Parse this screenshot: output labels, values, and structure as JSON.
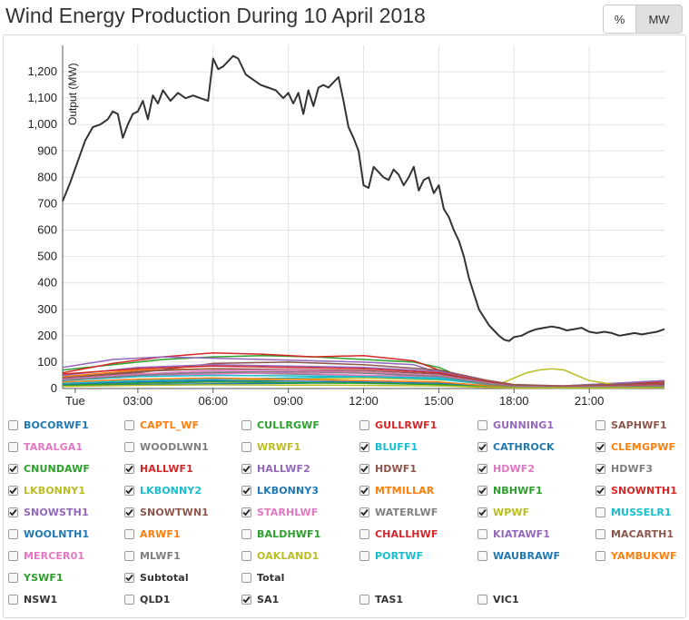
{
  "header": {
    "title": "Wind Energy Production During 10 April 2018"
  },
  "units_toggle": {
    "percent_label": "%",
    "mw_label": "MW",
    "selected": "MW"
  },
  "chart_data": {
    "type": "line",
    "ylabel": "Output (MW)",
    "ylim": [
      0,
      1300
    ],
    "yticks": [
      0,
      100,
      200,
      300,
      400,
      500,
      600,
      700,
      800,
      900,
      1000,
      1100,
      1200
    ],
    "ytick_labels": [
      "0",
      "100",
      "200",
      "300",
      "400",
      "500",
      "600",
      "700",
      "800",
      "900",
      "1,000",
      "1,100",
      "1,200"
    ],
    "xlim_hours": [
      0,
      24
    ],
    "xticks_hours": [
      0.5,
      3,
      6,
      9,
      12,
      15,
      18,
      21
    ],
    "xtick_labels": [
      "Tue",
      "03:00",
      "06:00",
      "09:00",
      "12:00",
      "15:00",
      "18:00",
      "21:00"
    ],
    "grid": true,
    "series": [
      {
        "name": "Subtotal",
        "color": "#333333",
        "x": [
          0,
          0.3,
          0.6,
          0.9,
          1.2,
          1.5,
          1.8,
          2.0,
          2.2,
          2.4,
          2.6,
          2.8,
          3.0,
          3.2,
          3.4,
          3.6,
          3.8,
          4.0,
          4.3,
          4.6,
          4.9,
          5.2,
          5.5,
          5.8,
          6.0,
          6.2,
          6.4,
          6.6,
          6.8,
          7.0,
          7.3,
          7.6,
          7.9,
          8.2,
          8.5,
          8.8,
          9.0,
          9.2,
          9.4,
          9.6,
          9.8,
          10.0,
          10.2,
          10.4,
          10.6,
          10.8,
          11.0,
          11.2,
          11.4,
          11.6,
          11.8,
          12.0,
          12.2,
          12.4,
          12.6,
          12.8,
          13.0,
          13.2,
          13.4,
          13.6,
          13.8,
          14.0,
          14.2,
          14.4,
          14.6,
          14.8,
          15.0,
          15.2,
          15.4,
          15.6,
          15.8,
          16.0,
          16.2,
          16.4,
          16.6,
          16.8,
          17.0,
          17.2,
          17.4,
          17.6,
          17.8,
          18.0,
          18.3,
          18.6,
          18.9,
          19.2,
          19.5,
          19.8,
          20.1,
          20.4,
          20.7,
          21.0,
          21.3,
          21.6,
          21.9,
          22.2,
          22.5,
          22.8,
          23.1,
          23.4,
          23.7,
          24.0
        ],
        "y": [
          710,
          780,
          860,
          940,
          990,
          1000,
          1020,
          1050,
          1040,
          950,
          1000,
          1040,
          1050,
          1090,
          1020,
          1110,
          1080,
          1130,
          1090,
          1120,
          1100,
          1110,
          1100,
          1090,
          1250,
          1210,
          1220,
          1240,
          1260,
          1250,
          1190,
          1170,
          1150,
          1140,
          1130,
          1100,
          1120,
          1080,
          1120,
          1040,
          1130,
          1070,
          1140,
          1150,
          1140,
          1160,
          1180,
          1090,
          990,
          950,
          900,
          770,
          760,
          840,
          820,
          800,
          790,
          830,
          810,
          770,
          800,
          840,
          750,
          790,
          800,
          740,
          770,
          680,
          650,
          600,
          560,
          500,
          420,
          360,
          300,
          270,
          240,
          220,
          200,
          185,
          180,
          195,
          200,
          215,
          225,
          230,
          235,
          230,
          220,
          225,
          230,
          215,
          210,
          215,
          210,
          200,
          205,
          210,
          205,
          210,
          215,
          225
        ]
      },
      {
        "name": "NBHWF1",
        "color": "#2ca02c",
        "x": [
          0,
          2,
          4,
          6,
          8,
          10,
          12,
          14,
          15,
          16,
          17,
          18,
          19,
          20,
          21,
          22,
          23,
          24
        ],
        "y": [
          70,
          90,
          110,
          120,
          125,
          120,
          110,
          100,
          80,
          40,
          20,
          10,
          10,
          10,
          15,
          20,
          25,
          30
        ]
      },
      {
        "name": "SNOWNTH1",
        "color": "#d62728",
        "x": [
          0,
          2,
          4,
          6,
          8,
          10,
          12,
          14,
          15,
          16,
          17,
          18,
          19,
          20,
          21,
          22,
          23,
          24
        ],
        "y": [
          60,
          95,
          120,
          135,
          130,
          120,
          125,
          105,
          70,
          40,
          20,
          10,
          5,
          5,
          10,
          15,
          20,
          25
        ]
      },
      {
        "name": "HALLWF2",
        "color": "#9467bd",
        "x": [
          0,
          2,
          4,
          6,
          8,
          10,
          12,
          14,
          15,
          16,
          17,
          18,
          19,
          20,
          21,
          22,
          23,
          24
        ],
        "y": [
          80,
          110,
          120,
          115,
          110,
          105,
          100,
          90,
          60,
          30,
          15,
          10,
          10,
          10,
          15,
          20,
          25,
          30
        ]
      },
      {
        "name": "WPWF",
        "color": "#bcbd22",
        "x": [
          0,
          6,
          12,
          16,
          17,
          17.5,
          18,
          18.5,
          19,
          19.5,
          20,
          20.5,
          21,
          22,
          23,
          24
        ],
        "y": [
          20,
          30,
          40,
          30,
          10,
          20,
          40,
          60,
          70,
          75,
          70,
          50,
          30,
          15,
          10,
          10
        ]
      },
      {
        "name": "CLEMGPWF",
        "color": "#ff7f0e",
        "x": [
          0,
          3,
          6,
          9,
          12,
          15,
          17,
          18,
          20,
          22,
          24
        ],
        "y": [
          45,
          70,
          75,
          70,
          60,
          50,
          20,
          10,
          5,
          10,
          15
        ]
      },
      {
        "name": "HDWF1",
        "color": "#8c564b",
        "x": [
          0,
          3,
          6,
          9,
          12,
          15,
          17,
          18,
          20,
          22,
          24
        ],
        "y": [
          40,
          60,
          95,
          100,
          90,
          70,
          30,
          15,
          10,
          15,
          20
        ]
      },
      {
        "name": "LKBONNY2",
        "color": "#17becf",
        "x": [
          0,
          3,
          6,
          9,
          12,
          15,
          17,
          18,
          20,
          22,
          24
        ],
        "y": [
          20,
          30,
          35,
          40,
          45,
          35,
          15,
          5,
          5,
          10,
          10
        ]
      },
      {
        "name": "SNOWSTH1",
        "color": "#9467bd",
        "x": [
          0,
          3,
          6,
          9,
          12,
          15,
          17,
          18,
          20,
          22,
          24
        ],
        "y": [
          50,
          80,
          90,
          85,
          80,
          65,
          25,
          10,
          5,
          10,
          15
        ]
      },
      {
        "name": "WATERLWF",
        "color": "#7f7f7f",
        "x": [
          0,
          3,
          6,
          9,
          12,
          15,
          17,
          18,
          20,
          22,
          24
        ],
        "y": [
          35,
          55,
          60,
          55,
          50,
          40,
          15,
          5,
          5,
          10,
          12
        ]
      },
      {
        "name": "CATHROCK",
        "color": "#1f77b4",
        "x": [
          0,
          3,
          6,
          9,
          12,
          15,
          17,
          18,
          20,
          22,
          24
        ],
        "y": [
          15,
          25,
          30,
          28,
          25,
          20,
          10,
          5,
          5,
          5,
          8
        ]
      },
      {
        "name": "STARHLWF",
        "color": "#e377c2",
        "x": [
          0,
          3,
          6,
          9,
          12,
          15,
          17,
          18,
          20,
          22,
          24
        ],
        "y": [
          30,
          50,
          55,
          60,
          50,
          45,
          20,
          10,
          8,
          10,
          12
        ]
      },
      {
        "name": "MTMILLAR",
        "color": "#ff7f0e",
        "x": [
          0,
          3,
          6,
          9,
          12,
          15,
          17,
          18,
          20,
          22,
          24
        ],
        "y": [
          25,
          35,
          40,
          35,
          30,
          25,
          10,
          5,
          3,
          5,
          6
        ]
      },
      {
        "name": "HALLWF1",
        "color": "#d62728",
        "x": [
          0,
          3,
          6,
          9,
          12,
          15,
          17,
          18,
          20,
          22,
          24
        ],
        "y": [
          55,
          75,
          85,
          80,
          75,
          60,
          25,
          10,
          8,
          10,
          14
        ]
      },
      {
        "name": "BLUFF1",
        "color": "#17becf",
        "x": [
          0,
          3,
          6,
          9,
          12,
          15,
          17,
          18,
          20,
          22,
          24
        ],
        "y": [
          30,
          45,
          50,
          48,
          45,
          40,
          18,
          8,
          6,
          8,
          10
        ]
      },
      {
        "name": "LKBONNY3",
        "color": "#1f77b4",
        "x": [
          0,
          3,
          6,
          9,
          12,
          15,
          17,
          18,
          20,
          22,
          24
        ],
        "y": [
          10,
          15,
          18,
          20,
          22,
          15,
          6,
          3,
          2,
          3,
          5
        ]
      },
      {
        "name": "SNOWTWN1",
        "color": "#8c564b",
        "x": [
          0,
          3,
          6,
          9,
          12,
          15,
          17,
          18,
          20,
          22,
          24
        ],
        "y": [
          40,
          65,
          75,
          72,
          68,
          55,
          22,
          10,
          6,
          8,
          12
        ]
      },
      {
        "name": "CNUNDAWF",
        "color": "#2ca02c",
        "x": [
          0,
          3,
          6,
          9,
          12,
          15,
          17,
          18,
          20,
          22,
          24
        ],
        "y": [
          12,
          20,
          25,
          22,
          20,
          15,
          6,
          3,
          2,
          3,
          4
        ]
      },
      {
        "name": "HDWF2",
        "color": "#e377c2",
        "x": [
          0,
          3,
          6,
          9,
          12,
          15,
          17,
          18,
          20,
          22,
          24
        ],
        "y": [
          35,
          55,
          68,
          70,
          62,
          50,
          20,
          8,
          5,
          8,
          10
        ]
      },
      {
        "name": "HDWF3",
        "color": "#7f7f7f",
        "x": [
          0,
          3,
          6,
          9,
          12,
          15,
          17,
          18,
          20,
          22,
          24
        ],
        "y": [
          32,
          50,
          62,
          64,
          58,
          46,
          18,
          7,
          5,
          7,
          9
        ]
      },
      {
        "name": "LKBONNY1",
        "color": "#bcbd22",
        "x": [
          0,
          3,
          6,
          9,
          12,
          15,
          17,
          18,
          20,
          22,
          24
        ],
        "y": [
          8,
          12,
          14,
          13,
          12,
          10,
          4,
          2,
          2,
          2,
          3
        ]
      }
    ]
  },
  "legend": {
    "items": [
      {
        "label": "BOCORWF1",
        "color": "#1f77b4",
        "checked": false
      },
      {
        "label": "CAPTL_WF",
        "color": "#ff7f0e",
        "checked": false
      },
      {
        "label": "CULLRGWF",
        "color": "#2ca02c",
        "checked": false
      },
      {
        "label": "GULLRWF1",
        "color": "#d62728",
        "checked": false
      },
      {
        "label": "GUNNING1",
        "color": "#9467bd",
        "checked": false
      },
      {
        "label": "SAPHWF1",
        "color": "#8c564b",
        "checked": false
      },
      {
        "label": "TARALGA1",
        "color": "#e377c2",
        "checked": false
      },
      {
        "label": "WOODLWN1",
        "color": "#7f7f7f",
        "checked": false
      },
      {
        "label": "WRWF1",
        "color": "#bcbd22",
        "checked": false
      },
      {
        "label": "BLUFF1",
        "color": "#17becf",
        "checked": true
      },
      {
        "label": "CATHROCK",
        "color": "#1f77b4",
        "checked": true
      },
      {
        "label": "CLEMGPWF",
        "color": "#ff7f0e",
        "checked": true
      },
      {
        "label": "CNUNDAWF",
        "color": "#2ca02c",
        "checked": true
      },
      {
        "label": "HALLWF1",
        "color": "#d62728",
        "checked": true
      },
      {
        "label": "HALLWF2",
        "color": "#9467bd",
        "checked": true
      },
      {
        "label": "HDWF1",
        "color": "#8c564b",
        "checked": true
      },
      {
        "label": "HDWF2",
        "color": "#e377c2",
        "checked": true
      },
      {
        "label": "HDWF3",
        "color": "#7f7f7f",
        "checked": true
      },
      {
        "label": "LKBONNY1",
        "color": "#bcbd22",
        "checked": true
      },
      {
        "label": "LKBONNY2",
        "color": "#17becf",
        "checked": true
      },
      {
        "label": "LKBONNY3",
        "color": "#1f77b4",
        "checked": true
      },
      {
        "label": "MTMILLAR",
        "color": "#ff7f0e",
        "checked": true
      },
      {
        "label": "NBHWF1",
        "color": "#2ca02c",
        "checked": true
      },
      {
        "label": "SNOWNTH1",
        "color": "#d62728",
        "checked": true
      },
      {
        "label": "SNOWSTH1",
        "color": "#9467bd",
        "checked": true
      },
      {
        "label": "SNOWTWN1",
        "color": "#8c564b",
        "checked": true
      },
      {
        "label": "STARHLWF",
        "color": "#e377c2",
        "checked": true
      },
      {
        "label": "WATERLWF",
        "color": "#7f7f7f",
        "checked": true
      },
      {
        "label": "WPWF",
        "color": "#bcbd22",
        "checked": true
      },
      {
        "label": "MUSSELR1",
        "color": "#17becf",
        "checked": false
      },
      {
        "label": "WOOLNTH1",
        "color": "#1f77b4",
        "checked": false
      },
      {
        "label": "ARWF1",
        "color": "#ff7f0e",
        "checked": false
      },
      {
        "label": "BALDHWF1",
        "color": "#2ca02c",
        "checked": false
      },
      {
        "label": "CHALLHWF",
        "color": "#d62728",
        "checked": false
      },
      {
        "label": "KIATAWF1",
        "color": "#9467bd",
        "checked": false
      },
      {
        "label": "MACARTH1",
        "color": "#8c564b",
        "checked": false
      },
      {
        "label": "MERCER01",
        "color": "#e377c2",
        "checked": false
      },
      {
        "label": "MLWF1",
        "color": "#7f7f7f",
        "checked": false
      },
      {
        "label": "OAKLAND1",
        "color": "#bcbd22",
        "checked": false
      },
      {
        "label": "PORTWF",
        "color": "#17becf",
        "checked": false
      },
      {
        "label": "WAUBRAWF",
        "color": "#1f77b4",
        "checked": false
      },
      {
        "label": "YAMBUKWF",
        "color": "#ff7f0e",
        "checked": false
      },
      {
        "label": "YSWF1",
        "color": "#2ca02c",
        "checked": false
      },
      {
        "label": "Subtotal",
        "color": "#333333",
        "checked": true
      },
      {
        "label": "Total",
        "color": "#333333",
        "checked": false
      }
    ],
    "regions": [
      {
        "label": "NSW1",
        "color": "#333333",
        "checked": false
      },
      {
        "label": "QLD1",
        "color": "#333333",
        "checked": false
      },
      {
        "label": "SA1",
        "color": "#333333",
        "checked": true
      },
      {
        "label": "TAS1",
        "color": "#333333",
        "checked": false
      },
      {
        "label": "VIC1",
        "color": "#333333",
        "checked": false
      }
    ]
  }
}
